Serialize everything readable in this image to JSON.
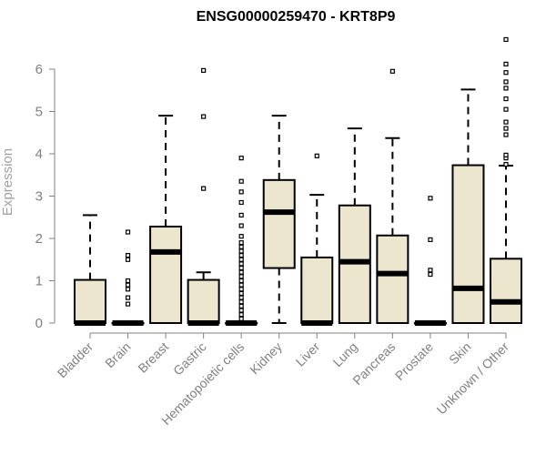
{
  "chart_data": {
    "type": "boxplot",
    "title": "ENSG00000259470 - KRT8P9",
    "xlabel": "",
    "ylabel": "Expression",
    "ylim": [
      0,
      6.8
    ],
    "yticks": [
      0,
      1,
      2,
      3,
      4,
      5,
      6
    ],
    "box_fill": "#ede6cf",
    "categories": [
      "Bladder",
      "Brain",
      "Breast",
      "Gastric",
      "Hematopoietic cells",
      "Kidney",
      "Liver",
      "Lung",
      "Pancreas",
      "Prostate",
      "Skin",
      "Unknown / Other"
    ],
    "series": [
      {
        "boxes": [
          {
            "whisker_low": 0,
            "q1": 0,
            "median": 0,
            "q3": 1.02,
            "whisker_high": 2.55,
            "outliers": []
          },
          {
            "whisker_low": 0,
            "q1": 0,
            "median": 0,
            "q3": 0,
            "whisker_high": 0,
            "outliers": [
              0.45,
              0.6,
              0.8,
              0.9,
              1.0,
              1.5,
              1.6,
              2.15
            ]
          },
          {
            "whisker_low": 0,
            "q1": 0,
            "median": 1.68,
            "q3": 2.28,
            "whisker_high": 4.9,
            "outliers": []
          },
          {
            "whisker_low": 0,
            "q1": 0,
            "median": 0,
            "q3": 1.02,
            "whisker_high": 1.2,
            "outliers": [
              3.18,
              4.88,
              5.97
            ]
          },
          {
            "whisker_low": 0,
            "q1": 0,
            "median": 0,
            "q3": 0,
            "whisker_high": 0,
            "outliers": [
              0.1,
              0.2,
              0.3,
              0.4,
              0.5,
              0.6,
              0.7,
              0.8,
              0.9,
              1.0,
              1.1,
              1.2,
              1.3,
              1.4,
              1.5,
              1.6,
              1.7,
              1.8,
              1.9,
              2.05,
              2.3,
              2.55,
              2.85,
              3.1,
              3.35,
              3.9
            ]
          },
          {
            "whisker_low": 0,
            "q1": 1.3,
            "median": 2.62,
            "q3": 3.38,
            "whisker_high": 4.9,
            "outliers": []
          },
          {
            "whisker_low": 0,
            "q1": 0,
            "median": 0,
            "q3": 1.55,
            "whisker_high": 3.03,
            "outliers": [
              3.95
            ]
          },
          {
            "whisker_low": 0,
            "q1": 0,
            "median": 1.45,
            "q3": 2.78,
            "whisker_high": 4.6,
            "outliers": []
          },
          {
            "whisker_low": 0,
            "q1": 0,
            "median": 1.17,
            "q3": 2.07,
            "whisker_high": 4.37,
            "outliers": [
              5.95
            ]
          },
          {
            "whisker_low": 0,
            "q1": 0,
            "median": 0,
            "q3": 0,
            "whisker_high": 0,
            "outliers": [
              1.15,
              1.25,
              1.97,
              2.95
            ]
          },
          {
            "whisker_low": 0,
            "q1": 0,
            "median": 0.82,
            "q3": 3.73,
            "whisker_high": 5.52,
            "outliers": []
          },
          {
            "whisker_low": 0,
            "q1": 0,
            "median": 0.5,
            "q3": 1.52,
            "whisker_high": 3.72,
            "outliers": [
              3.75,
              3.9,
              3.97,
              4.45,
              4.6,
              4.75,
              5.05,
              5.3,
              5.55,
              5.7,
              5.92,
              6.12,
              6.7
            ]
          }
        ]
      }
    ]
  }
}
